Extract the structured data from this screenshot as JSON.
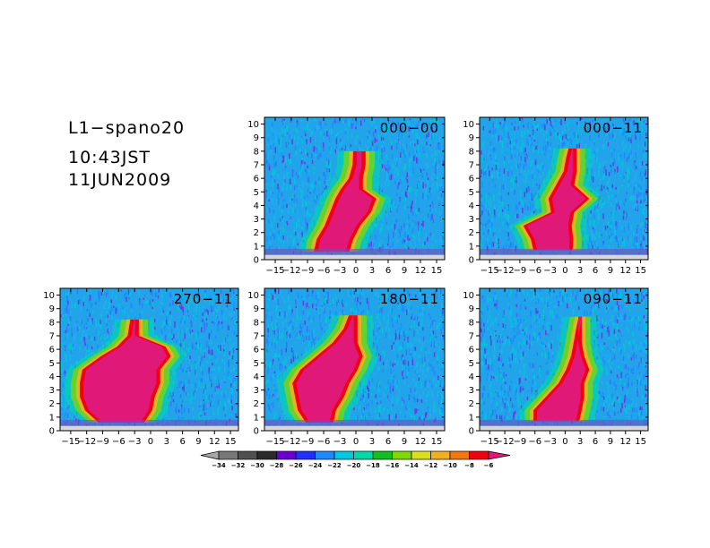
{
  "info": {
    "line1": "L1−spano20",
    "line2": "10:43JST",
    "line3": "11JUN2009"
  },
  "chart_data": {
    "type": "heatmap",
    "x_ticks": [
      "−15",
      "−12",
      "−9",
      "−6",
      "−3",
      "0",
      "3",
      "6",
      "9",
      "12",
      "15"
    ],
    "x_tick_values": [
      -15,
      -12,
      -9,
      -6,
      -3,
      0,
      3,
      6,
      9,
      12,
      15
    ],
    "y_ticks": [
      "0",
      "1",
      "2",
      "3",
      "4",
      "5",
      "6",
      "7",
      "8",
      "9",
      "10"
    ],
    "y_tick_values": [
      0,
      1,
      2,
      3,
      4,
      5,
      6,
      7,
      8,
      9,
      10
    ],
    "xlim": [
      -17,
      16.5
    ],
    "ylim": [
      0,
      10.5
    ],
    "panels": [
      {
        "label": "000−00",
        "profile": [
          [
            0.6,
            -7.5,
            -1.5
          ],
          [
            1.5,
            -7,
            -0.8
          ],
          [
            2.5,
            -5.5,
            0.5
          ],
          [
            3.5,
            -4.5,
            2.5
          ],
          [
            4.5,
            -3.5,
            3.5
          ],
          [
            5.2,
            -2.5,
            1
          ],
          [
            6,
            -1,
            1
          ],
          [
            7,
            -0.3,
            1.5
          ],
          [
            8,
            -0.2,
            1.5
          ]
        ]
      },
      {
        "label": "000−11",
        "profile": [
          [
            0.7,
            -6,
            1.2
          ],
          [
            1.5,
            -6.5,
            1.3
          ],
          [
            2.5,
            -8,
            1
          ],
          [
            3.5,
            -2.5,
            1.5
          ],
          [
            4.5,
            -3,
            4.5
          ],
          [
            5.5,
            -1.5,
            1.5
          ],
          [
            6.5,
            0,
            2
          ],
          [
            7.5,
            0.5,
            2
          ],
          [
            8.2,
            1,
            2
          ]
        ]
      },
      {
        "label": "270−11",
        "profile": [
          [
            0.6,
            -9.5,
            -1.5
          ],
          [
            1.5,
            -12,
            0
          ],
          [
            2.5,
            -13,
            0.5
          ],
          [
            3.5,
            -13,
            1.5
          ],
          [
            4.5,
            -12.5,
            1.5
          ],
          [
            5.5,
            -9,
            3.5
          ],
          [
            6.2,
            -6,
            2.5
          ],
          [
            7,
            -4,
            -2.5
          ],
          [
            8.2,
            -3.5,
            -2.5
          ]
        ]
      },
      {
        "label": "180−11",
        "profile": [
          [
            0.6,
            -9,
            -4.5
          ],
          [
            1.5,
            -10.5,
            -4
          ],
          [
            2.5,
            -11,
            -2.5
          ],
          [
            3.5,
            -11.5,
            -1.5
          ],
          [
            4.5,
            -10,
            0
          ],
          [
            5.5,
            -7,
            1
          ],
          [
            6.5,
            -4,
            0
          ],
          [
            7.5,
            -2,
            0
          ],
          [
            8.5,
            -1,
            0
          ]
        ]
      },
      {
        "label": "090−11",
        "profile": [
          [
            0.7,
            -6,
            2.5
          ],
          [
            1.5,
            -6,
            3
          ],
          [
            2.5,
            -3.5,
            3.5
          ],
          [
            3.5,
            -1,
            3.5
          ],
          [
            4.5,
            0.5,
            4.5
          ],
          [
            5.5,
            1.5,
            3.5
          ],
          [
            6.5,
            2,
            3
          ],
          [
            7.5,
            2.5,
            3
          ],
          [
            8.4,
            3,
            3
          ]
        ]
      }
    ],
    "colorbar": {
      "levels": [
        "−34",
        "−32",
        "−30",
        "−28",
        "−26",
        "−24",
        "−22",
        "−20",
        "−18",
        "−16",
        "−14",
        "−12",
        "−10",
        "−8",
        "−6"
      ],
      "colors": [
        "#a8a8a8",
        "#787878",
        "#505050",
        "#2a2a2a",
        "#6a00d0",
        "#2030ff",
        "#1e88ff",
        "#00c8e0",
        "#00d8a8",
        "#10c020",
        "#80d800",
        "#d8e020",
        "#f0b020",
        "#f07810",
        "#f00010",
        "#e01878"
      ]
    }
  }
}
